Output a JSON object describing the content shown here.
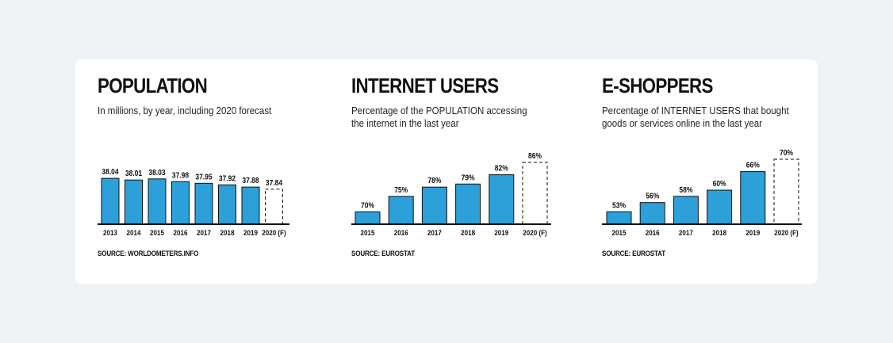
{
  "colors": {
    "bar": "#2d9fd9",
    "forecast_fill": "#ffffff",
    "outline": "#111111"
  },
  "chart_data": [
    {
      "type": "bar",
      "title": "POPULATION",
      "subtitle": "In millions, by year, including 2020 forecast",
      "source": "SOURCE: WORLDOMETERS.INFO",
      "categories": [
        "2013",
        "2014",
        "2015",
        "2016",
        "2017",
        "2018",
        "2019",
        "2020 (F)"
      ],
      "values": [
        38.04,
        38.01,
        38.03,
        37.98,
        37.95,
        37.92,
        37.88,
        37.84
      ],
      "value_labels": [
        "38.04",
        "38.01",
        "38.03",
        "37.98",
        "37.95",
        "37.92",
        "37.88",
        "37.84"
      ],
      "forecast": [
        false,
        false,
        false,
        false,
        false,
        false,
        false,
        true
      ],
      "ylim": [
        37.2,
        38.1
      ]
    },
    {
      "type": "bar",
      "title": "INTERNET USERS",
      "subtitle": "Percentage of the POPULATION accessing the internet in the last year",
      "source": "SOURCE: EUROSTAT",
      "categories": [
        "2015",
        "2016",
        "2017",
        "2018",
        "2019",
        "2020 (F)"
      ],
      "values": [
        70,
        75,
        78,
        79,
        82,
        86
      ],
      "value_labels": [
        "70%",
        "75%",
        "78%",
        "79%",
        "82%",
        "86%"
      ],
      "forecast": [
        false,
        false,
        false,
        false,
        false,
        true
      ],
      "ylim": [
        66,
        86
      ]
    },
    {
      "type": "bar",
      "title": "E-SHOPPERS",
      "subtitle": "Percentage of INTERNET USERS that bought goods or services online in the last year",
      "source": "SOURCE: EUROSTAT",
      "categories": [
        "2015",
        "2016",
        "2017",
        "2018",
        "2019",
        "2020 (F)"
      ],
      "values": [
        53,
        56,
        58,
        60,
        66,
        70
      ],
      "value_labels": [
        "53%",
        "56%",
        "58%",
        "60%",
        "66%",
        "70%"
      ],
      "forecast": [
        false,
        false,
        false,
        false,
        false,
        true
      ],
      "ylim": [
        49,
        70
      ]
    }
  ]
}
